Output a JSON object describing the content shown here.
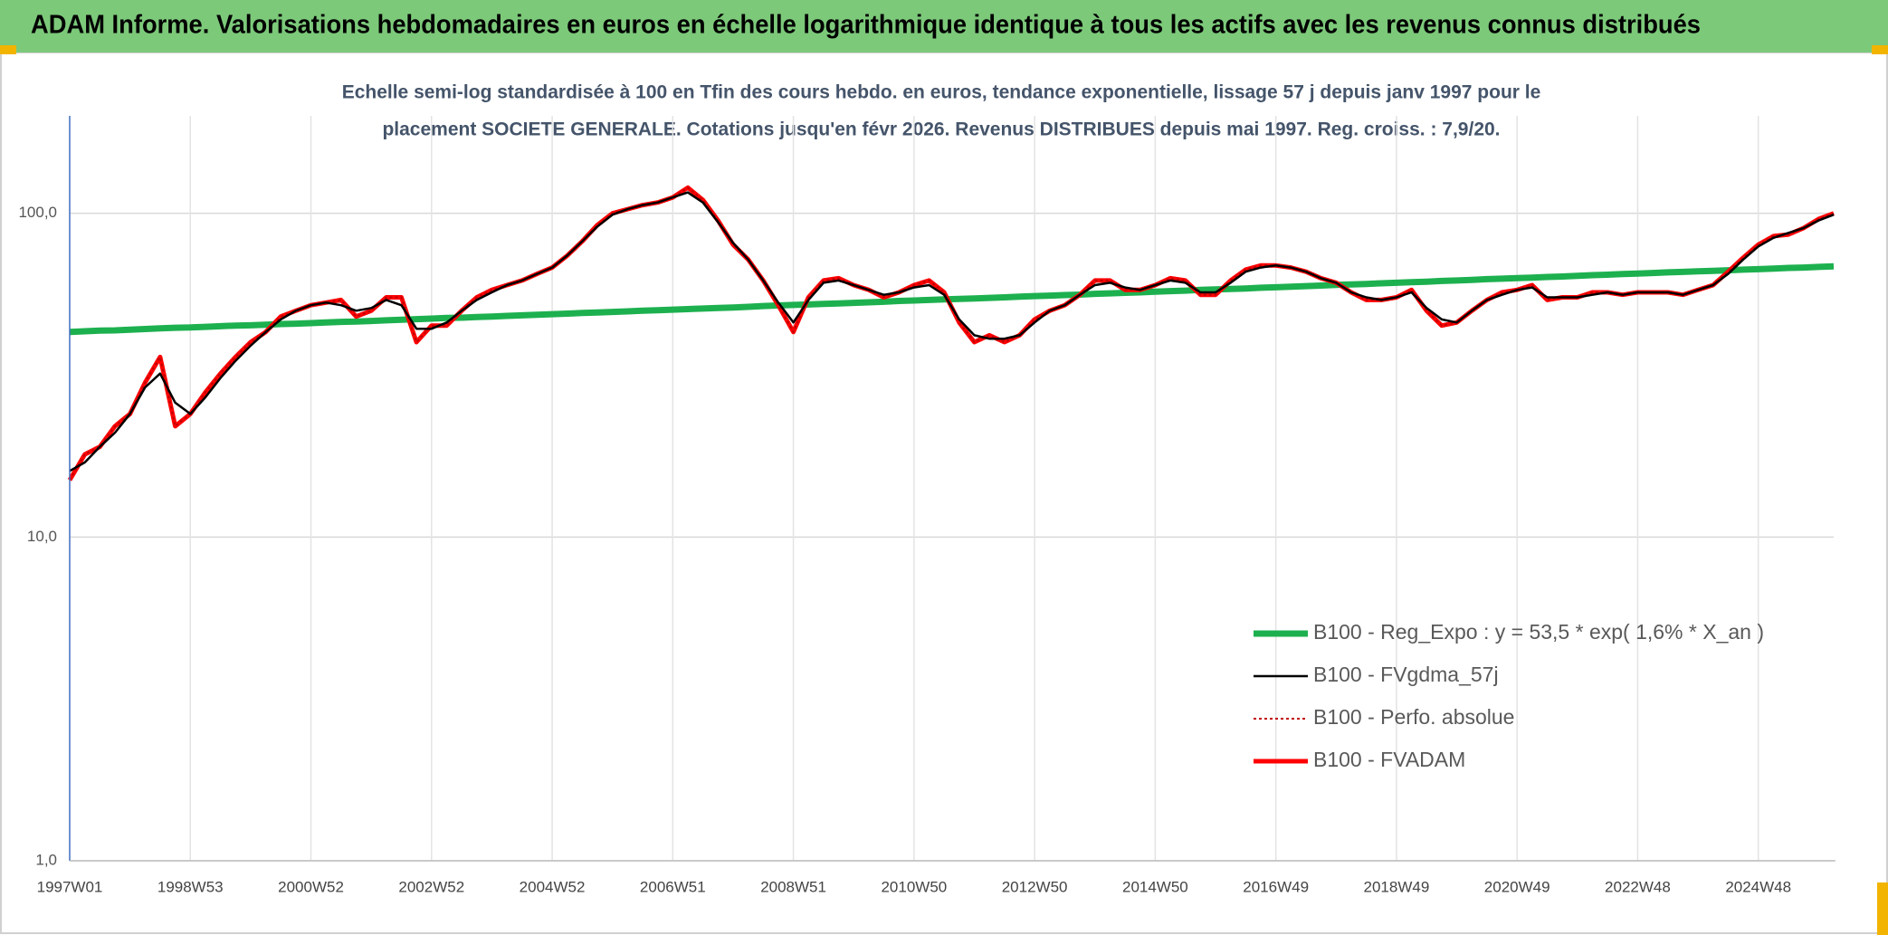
{
  "chart_data": {
    "type": "line",
    "title": "ADAM Informe. Valorisations hebdomadaires en euros en échelle logarithmique identique à tous les actifs avec les revenus connus distribués",
    "subtitle": [
      "Echelle semi-log standardisée à 100 en Tfin des cours hebdo. en euros, tendance exponentielle, lissage 57 j depuis janv 1997 pour le",
      "placement SOCIETE GENERALE. Cotations jusqu'en févr 2026. Revenus DISTRIBUES depuis mai 1997. Reg. croiss. : 7,9/20."
    ],
    "log_scale": true,
    "grid": true,
    "legend": "lower right",
    "ylim": [
      1,
      200
    ],
    "yticks": [
      {
        "value": 1,
        "label": "1,0"
      },
      {
        "value": 10,
        "label": "10,0"
      },
      {
        "value": 100,
        "label": "100,0"
      }
    ],
    "categories": [
      "1997W01",
      null,
      null,
      null,
      null,
      null,
      null,
      null,
      "1998W53",
      null,
      null,
      null,
      null,
      null,
      null,
      null,
      "2000W52",
      null,
      null,
      null,
      null,
      null,
      null,
      null,
      "2002W52",
      null,
      null,
      null,
      null,
      null,
      null,
      null,
      "2004W52",
      null,
      null,
      null,
      null,
      null,
      null,
      null,
      "2006W51",
      null,
      null,
      null,
      null,
      null,
      null,
      null,
      "2008W51",
      null,
      null,
      null,
      null,
      null,
      null,
      null,
      "2010W50",
      null,
      null,
      null,
      null,
      null,
      null,
      null,
      "2012W50",
      null,
      null,
      null,
      null,
      null,
      null,
      null,
      "2014W50",
      null,
      null,
      null,
      null,
      null,
      null,
      null,
      "2016W49",
      null,
      null,
      null,
      null,
      null,
      null,
      null,
      "2018W49",
      null,
      null,
      null,
      null,
      null,
      null,
      null,
      "2020W49",
      null,
      null,
      null,
      null,
      null,
      null,
      null,
      "2022W48",
      null,
      null,
      null,
      null,
      null,
      null,
      null,
      "2024W48",
      null,
      null,
      null,
      null,
      null
    ],
    "series": [
      {
        "name": "B100 - Reg_Expo : y = 53,5 * exp( 1,6% *  X_an )",
        "color": "#1db04f",
        "width": 7,
        "dash": "none",
        "values": [
          43.0,
          43.2,
          43.4,
          43.5,
          43.7,
          43.9,
          44.1,
          44.3,
          44.4,
          44.6,
          44.8,
          45.0,
          45.1,
          45.3,
          45.5,
          45.6,
          45.8,
          46.0,
          46.2,
          46.3,
          46.5,
          46.7,
          46.9,
          47.1,
          47.3,
          47.5,
          47.6,
          47.8,
          48.0,
          48.2,
          48.4,
          48.6,
          48.8,
          49.0,
          49.2,
          49.4,
          49.6,
          49.8,
          50.0,
          50.2,
          50.4,
          50.6,
          50.8,
          51.0,
          51.2,
          51.4,
          51.7,
          51.9,
          52.1,
          52.3,
          52.5,
          52.7,
          52.9,
          53.1,
          53.3,
          53.6,
          53.8,
          54.0,
          54.2,
          54.4,
          54.6,
          54.8,
          55.0,
          55.3,
          55.5,
          55.7,
          55.9,
          56.1,
          56.4,
          56.6,
          56.8,
          57.0,
          57.3,
          57.5,
          57.7,
          58.0,
          58.2,
          58.4,
          58.6,
          58.9,
          59.1,
          59.3,
          59.6,
          59.8,
          60.1,
          60.3,
          60.5,
          60.8,
          61.0,
          61.3,
          61.5,
          61.8,
          62.0,
          62.3,
          62.6,
          62.8,
          63.1,
          63.3,
          63.6,
          63.8,
          64.1,
          64.4,
          64.6,
          64.9,
          65.1,
          65.4,
          65.7,
          65.9,
          66.2,
          66.4,
          66.7,
          67.0,
          67.2,
          67.5,
          67.8,
          68.0,
          68.3,
          68.6
        ]
      },
      {
        "name": "B100 - FVgdma_57j",
        "color": "#000000",
        "width": 2.5,
        "dash": "none",
        "values": [
          16,
          17,
          19,
          21,
          24,
          29,
          32,
          26,
          24,
          27,
          31,
          35,
          39,
          43,
          47,
          50,
          52,
          53,
          52,
          50,
          51,
          54,
          52,
          44,
          44,
          46,
          50,
          54,
          57,
          60,
          62,
          65,
          68,
          74,
          82,
          91,
          99,
          103,
          106,
          108,
          112,
          116,
          108,
          94,
          81,
          72,
          62,
          53,
          46,
          54,
          61,
          62,
          60,
          58,
          56,
          57,
          59,
          60,
          56,
          47,
          42,
          41,
          41,
          42,
          46,
          50,
          52,
          56,
          60,
          61,
          59,
          58,
          60,
          62,
          61,
          57,
          57,
          61,
          66,
          68,
          69,
          68,
          66,
          63,
          61,
          57,
          55,
          54,
          55,
          57,
          51,
          47,
          46,
          50,
          54,
          56,
          58,
          59,
          55,
          55,
          55,
          56,
          57,
          56,
          57,
          57,
          57,
          56,
          58,
          60,
          65,
          72,
          79,
          84,
          87,
          90,
          95,
          99
        ]
      },
      {
        "name": "B100 - Perfo. absolue",
        "color": "#c00000",
        "width": 2,
        "dash": "3 3",
        "values": [
          15,
          18,
          19,
          22,
          24,
          30,
          36,
          22,
          24,
          28,
          32,
          36,
          40,
          43,
          48,
          50,
          52,
          53,
          54,
          48,
          50,
          55,
          55,
          40,
          45,
          45,
          50,
          55,
          58,
          60,
          62,
          65,
          68,
          74,
          82,
          92,
          100,
          103,
          106,
          108,
          112,
          120,
          110,
          95,
          80,
          72,
          62,
          52,
          43,
          55,
          62,
          63,
          60,
          58,
          55,
          57,
          60,
          62,
          57,
          46,
          40,
          42,
          40,
          42,
          47,
          50,
          52,
          56,
          62,
          62,
          58,
          58,
          60,
          63,
          62,
          56,
          56,
          62,
          67,
          69,
          69,
          68,
          66,
          63,
          61,
          57,
          54,
          54,
          55,
          58,
          50,
          45,
          46,
          50,
          54,
          57,
          58,
          60,
          54,
          55,
          55,
          57,
          57,
          56,
          57,
          57,
          57,
          56,
          58,
          60,
          66,
          73,
          80,
          85,
          86,
          90,
          96,
          100
        ]
      },
      {
        "name": "B100 - FVADAM",
        "color": "#ff0000",
        "width": 5,
        "dash": "none",
        "values": [
          15,
          18,
          19,
          22,
          24,
          30,
          36,
          22,
          24,
          28,
          32,
          36,
          40,
          43,
          48,
          50,
          52,
          53,
          54,
          48,
          50,
          55,
          55,
          40,
          45,
          45,
          50,
          55,
          58,
          60,
          62,
          65,
          68,
          74,
          82,
          92,
          100,
          103,
          106,
          108,
          112,
          120,
          110,
          95,
          80,
          72,
          62,
          52,
          43,
          55,
          62,
          63,
          60,
          58,
          55,
          57,
          60,
          62,
          57,
          46,
          40,
          42,
          40,
          42,
          47,
          50,
          52,
          56,
          62,
          62,
          58,
          58,
          60,
          63,
          62,
          56,
          56,
          62,
          67,
          69,
          69,
          68,
          66,
          63,
          61,
          57,
          54,
          54,
          55,
          58,
          50,
          45,
          46,
          50,
          54,
          57,
          58,
          60,
          54,
          55,
          55,
          57,
          57,
          56,
          57,
          57,
          57,
          56,
          58,
          60,
          66,
          73,
          80,
          85,
          86,
          90,
          96,
          100
        ]
      }
    ]
  }
}
